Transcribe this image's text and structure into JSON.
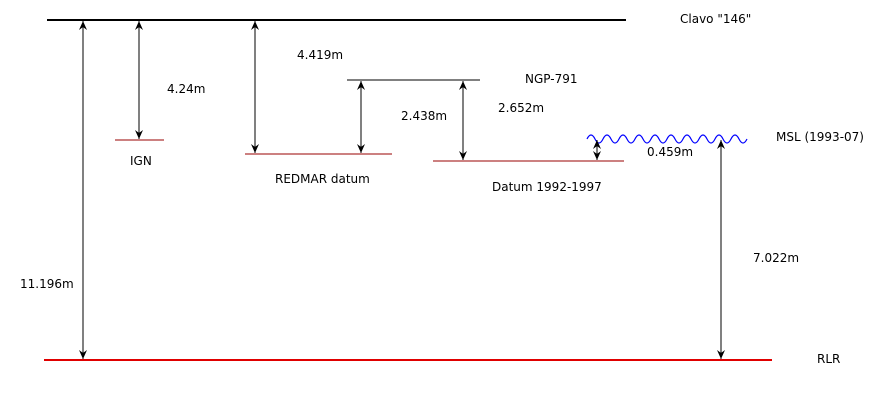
{
  "colors": {
    "black": "#000000",
    "red": "#cc0000",
    "darkred": "#990000",
    "blue": "#0000ff"
  },
  "levels": {
    "clavo": "Clavo \"146\"",
    "ngp": "NGP-791",
    "msl": "MSL (1993-07)",
    "ign": "IGN",
    "redmar": "REDMAR datum",
    "datum": "Datum 1992-1997",
    "rlr": "RLR"
  },
  "measures": {
    "clavo_rlr": "11.196m",
    "clavo_ign": "4.24m",
    "clavo_redmar": "4.419m",
    "ngp_redmar": "2.438m",
    "ngp_datum": "2.652m",
    "msl_datum": "0.459m",
    "msl_rlr": "7.022m"
  }
}
